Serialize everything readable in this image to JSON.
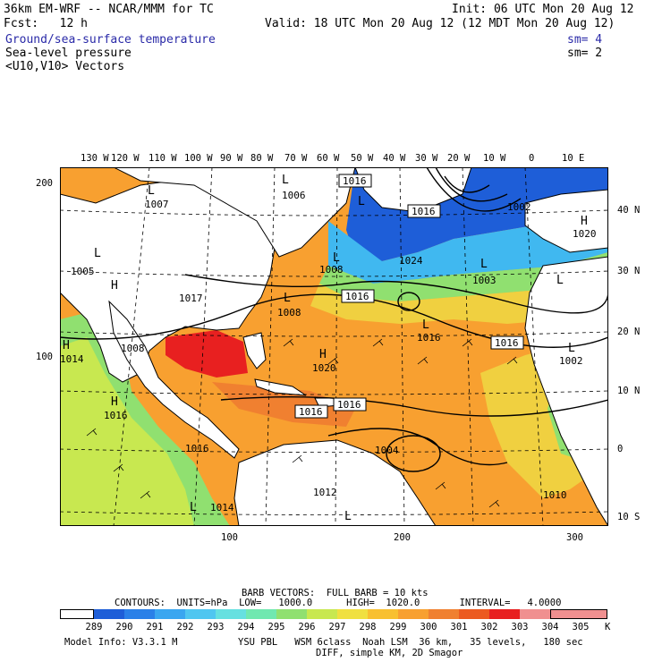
{
  "header": {
    "title": "36km EM-WRF -- NCAR/MMM for TC",
    "init": "Init: 06 UTC Mon 20 Aug 12",
    "fcst": "Fcst:   12 h",
    "valid": "Valid: 18 UTC Mon 20 Aug 12 (12 MDT Mon 20 Aug 12)",
    "fields": [
      {
        "name": "Ground/sea-surface temperature",
        "sm": "sm= 4"
      },
      {
        "name": "Sea-level pressure",
        "sm": "sm= 2"
      },
      {
        "name": "<U10,V10> Vectors",
        "sm": ""
      }
    ]
  },
  "top_longitude_labels": [
    "130 W",
    "120 W",
    "110 W",
    "100 W",
    "90 W",
    "80 W",
    "70 W",
    "60 W",
    "50 W",
    "40 W",
    "30 W",
    "20 W",
    "10 W",
    "0",
    "10 E"
  ],
  "right_latitude_labels": [
    "40 N",
    "30 N",
    "20 N",
    "10 N",
    "0",
    "10 S"
  ],
  "left_axis_labels": [
    "200",
    "100"
  ],
  "bottom_axis_labels": [
    "100",
    "200",
    "300"
  ],
  "pressure_labels": [
    "1007",
    "1006",
    "1016",
    "1016",
    "1024",
    "1003",
    "1020",
    "1002",
    "1017",
    "1008",
    "1008",
    "1016",
    "1016",
    "1016",
    "1016",
    "1020",
    "1002",
    "1008",
    "1014",
    "1016",
    "1016",
    "1016",
    "1004",
    "1012",
    "1010",
    "1014",
    "1005"
  ],
  "center_markers": [
    "L",
    "L",
    "L",
    "L",
    "L",
    "L",
    "L",
    "L",
    "L",
    "L",
    "H",
    "H",
    "H",
    "H",
    "H",
    "L",
    "L"
  ],
  "footer": {
    "barb_title": "BARB VECTORS:  FULL BARB = 10 kts",
    "contours": "CONTOURS:  UNITS=hPa  LOW=   1000.0      HIGH=  1020.0       INTERVAL=   4.0000",
    "units": "K",
    "model_info": "Model Info: V3.3.1 M",
    "physics": "YSU PBL   WSM 6class  Noah LSM  36 km,   35 levels,   180 sec",
    "diff": "DIFF, simple KM, 2D Smagor"
  },
  "colorbar": {
    "colors": [
      "#ffffff",
      "#1e5ed8",
      "#2a80e8",
      "#3aa6f0",
      "#50c6f0",
      "#66e0e0",
      "#70e8b0",
      "#90e070",
      "#c8e850",
      "#f0e040",
      "#f8c030",
      "#f8a030",
      "#f08030",
      "#ec5a20",
      "#e82020",
      "#f09090"
    ],
    "ticks": [
      "289",
      "290",
      "291",
      "292",
      "293",
      "294",
      "295",
      "296",
      "297",
      "298",
      "299",
      "300",
      "301",
      "302",
      "303",
      "304",
      "305"
    ]
  },
  "colors": {
    "title_blue": "#2a2aa8"
  }
}
